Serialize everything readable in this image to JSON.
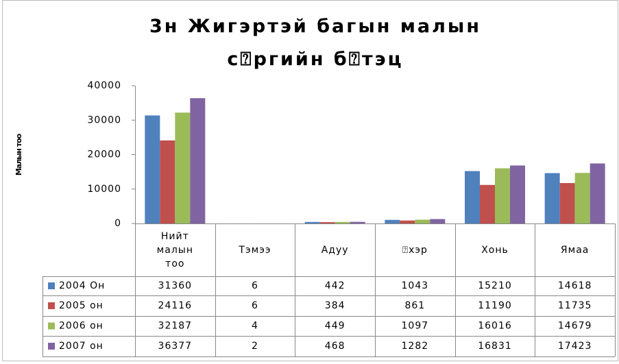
{
  "chart_data": {
    "type": "bar",
    "title": "3н Жигэртэй багын малын с⍰ргийн б⍰тэц",
    "y_label": "Малын тоо",
    "categories": [
      "Нийт малын тоо",
      "Тэмээ",
      "Адуу",
      "⍰хэр",
      "Хонь",
      "Ямаа"
    ],
    "series": [
      {
        "name": "2004 Он",
        "color": "#4f81bd",
        "values": [
          31360,
          6,
          442,
          1043,
          15210,
          14618
        ]
      },
      {
        "name": "2005 он",
        "color": "#c0504d",
        "values": [
          24116,
          6,
          384,
          861,
          11190,
          11735
        ]
      },
      {
        "name": "2006 он",
        "color": "#9bbb59",
        "values": [
          32187,
          4,
          449,
          1097,
          16016,
          14679
        ]
      },
      {
        "name": "2007 он",
        "color": "#8064a2",
        "values": [
          36377,
          2,
          468,
          1282,
          16831,
          17423
        ]
      }
    ],
    "ylim": [
      0,
      40000
    ],
    "yticks": [
      0,
      10000,
      20000,
      30000,
      40000
    ],
    "grid": false
  }
}
